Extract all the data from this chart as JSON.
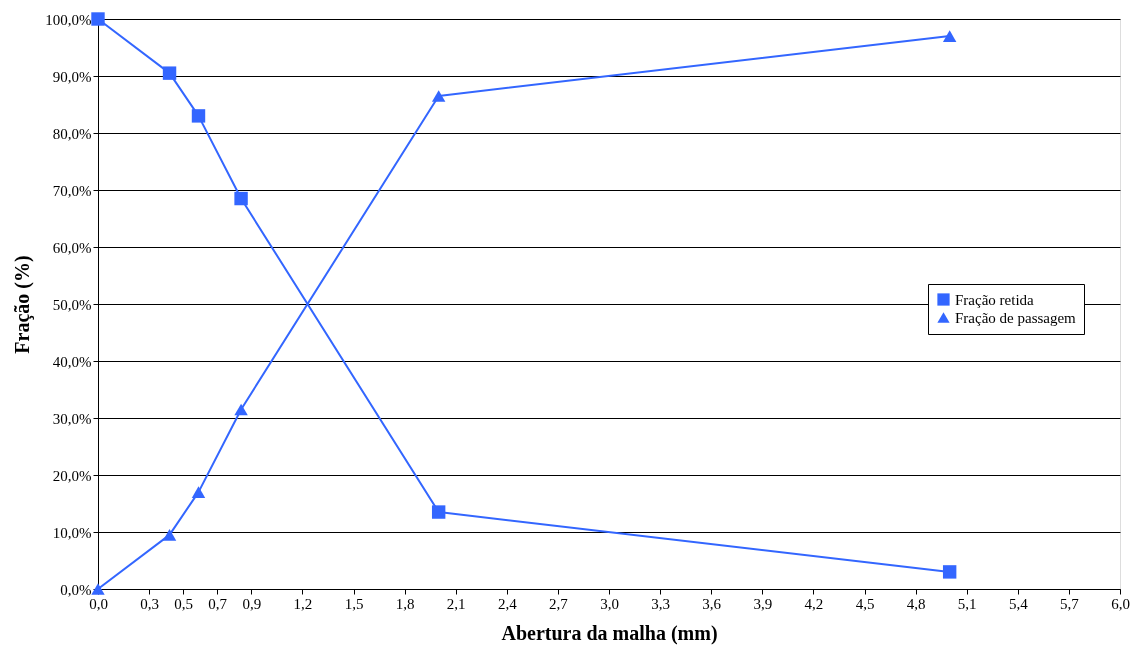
{
  "chart_data": {
    "type": "line",
    "xlabel": "Abertura da malha (mm)",
    "ylabel": "Fração (%)",
    "xlim": [
      0,
      6
    ],
    "ylim": [
      0,
      100
    ],
    "xticks": [
      {
        "value": 0,
        "label": "0,0"
      },
      {
        "value": 0.3,
        "label": "0,3"
      },
      {
        "value": 0.5,
        "label": "0,5"
      },
      {
        "value": 0.7,
        "label": "0,7"
      },
      {
        "value": 0.9,
        "label": "0,9"
      },
      {
        "value": 1.2,
        "label": "1,2"
      },
      {
        "value": 1.5,
        "label": "1,5"
      },
      {
        "value": 1.8,
        "label": "1,8"
      },
      {
        "value": 2.1,
        "label": "2,1"
      },
      {
        "value": 2.4,
        "label": "2,4"
      },
      {
        "value": 2.7,
        "label": "2,7"
      },
      {
        "value": 3.0,
        "label": "3,0"
      },
      {
        "value": 3.3,
        "label": "3,3"
      },
      {
        "value": 3.6,
        "label": "3,6"
      },
      {
        "value": 3.9,
        "label": "3,9"
      },
      {
        "value": 4.2,
        "label": "4,2"
      },
      {
        "value": 4.5,
        "label": "4,5"
      },
      {
        "value": 4.8,
        "label": "4,8"
      },
      {
        "value": 5.1,
        "label": "5,1"
      },
      {
        "value": 5.4,
        "label": "5,4"
      },
      {
        "value": 5.7,
        "label": "5,7"
      },
      {
        "value": 6.0,
        "label": "6,0"
      }
    ],
    "yticks": [
      {
        "value": 0,
        "label": "0,0%"
      },
      {
        "value": 10,
        "label": "10,0%"
      },
      {
        "value": 20,
        "label": "20,0%"
      },
      {
        "value": 30,
        "label": "30,0%"
      },
      {
        "value": 40,
        "label": "40,0%"
      },
      {
        "value": 50,
        "label": "50,0%"
      },
      {
        "value": 60,
        "label": "60,0%"
      },
      {
        "value": 70,
        "label": "70,0%"
      },
      {
        "value": 80,
        "label": "80,0%"
      },
      {
        "value": 90,
        "label": "90,0%"
      },
      {
        "value": 100,
        "label": "100,0%"
      }
    ],
    "x": [
      0,
      0.42,
      0.59,
      0.84,
      2.0,
      5.0
    ],
    "grid": "y",
    "legend": "right",
    "line_style": "solid",
    "series": [
      {
        "name": "Fração retida",
        "color": "#3366ff",
        "marker": "square",
        "values": [
          100,
          90.5,
          83,
          68.5,
          13.5,
          3
        ]
      },
      {
        "name": "Fração de passagem",
        "color": "#3366ff",
        "marker": "triangle",
        "values": [
          0,
          9.5,
          17,
          31.5,
          86.5,
          97
        ]
      }
    ]
  }
}
